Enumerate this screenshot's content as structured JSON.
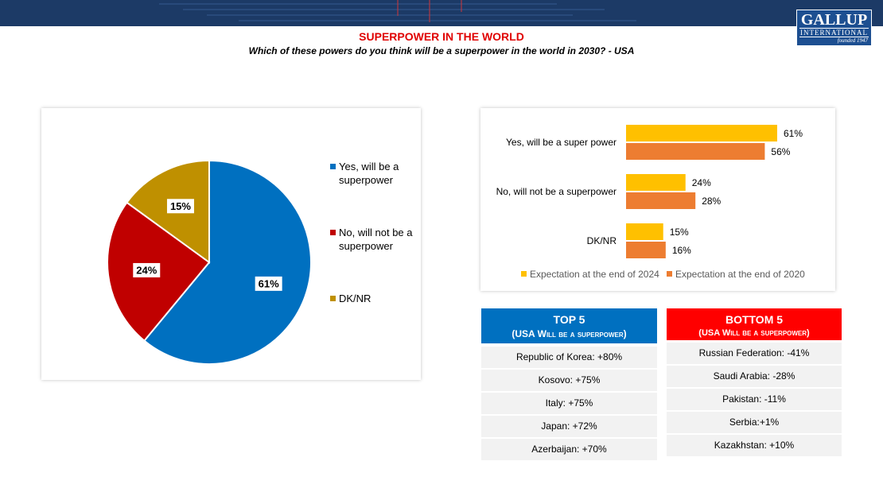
{
  "header": {
    "title": "SUPERPOWER IN THE WORLD",
    "subtitle": "Which of these powers do you think will be a superpower in the world in 2030? - USA"
  },
  "logo": {
    "name": "GALLUP",
    "subtitle": "INTERNATIONAL",
    "founded": "founded 1947"
  },
  "chart_data": [
    {
      "type": "pie",
      "categories": [
        "Yes, will be a superpower",
        "No, will not be a superpower",
        "DK/NR"
      ],
      "values": [
        61,
        24,
        15
      ],
      "value_labels": [
        "61%",
        "24%",
        "15%"
      ],
      "colors": [
        "#0070c0",
        "#c00000",
        "#bf9000"
      ]
    },
    {
      "type": "hbar",
      "categories": [
        "Yes, will be a super power",
        "No, will not be a superpower",
        "DK/NR"
      ],
      "series": [
        {
          "name": "Expectation at the end of 2024",
          "color": "#ffc000",
          "values": [
            61,
            24,
            15
          ],
          "value_labels": [
            "61%",
            "24%",
            "15%"
          ]
        },
        {
          "name": "Expectation at the end of 2020",
          "color": "#ed7d31",
          "values": [
            56,
            28,
            16
          ],
          "value_labels": [
            "56%",
            "28%",
            "16%"
          ]
        }
      ],
      "xlim": [
        0,
        70
      ]
    }
  ],
  "top5": {
    "title": "TOP 5",
    "subtitle": "(USA Will be a superpower)",
    "rows": [
      "Republic of Korea: +80%",
      "Kosovo: +75%",
      "Italy: +75%",
      "Japan: +72%",
      "Azerbaijan: +70%"
    ]
  },
  "bottom5": {
    "title": "BOTTOM 5",
    "subtitle": "(USA Will be a superpower)",
    "rows": [
      "Russian Federation: -41%",
      "Saudi Arabia: -28%",
      "Pakistan: -11%",
      "Serbia:+1%",
      "Kazakhstan: +10%"
    ]
  }
}
